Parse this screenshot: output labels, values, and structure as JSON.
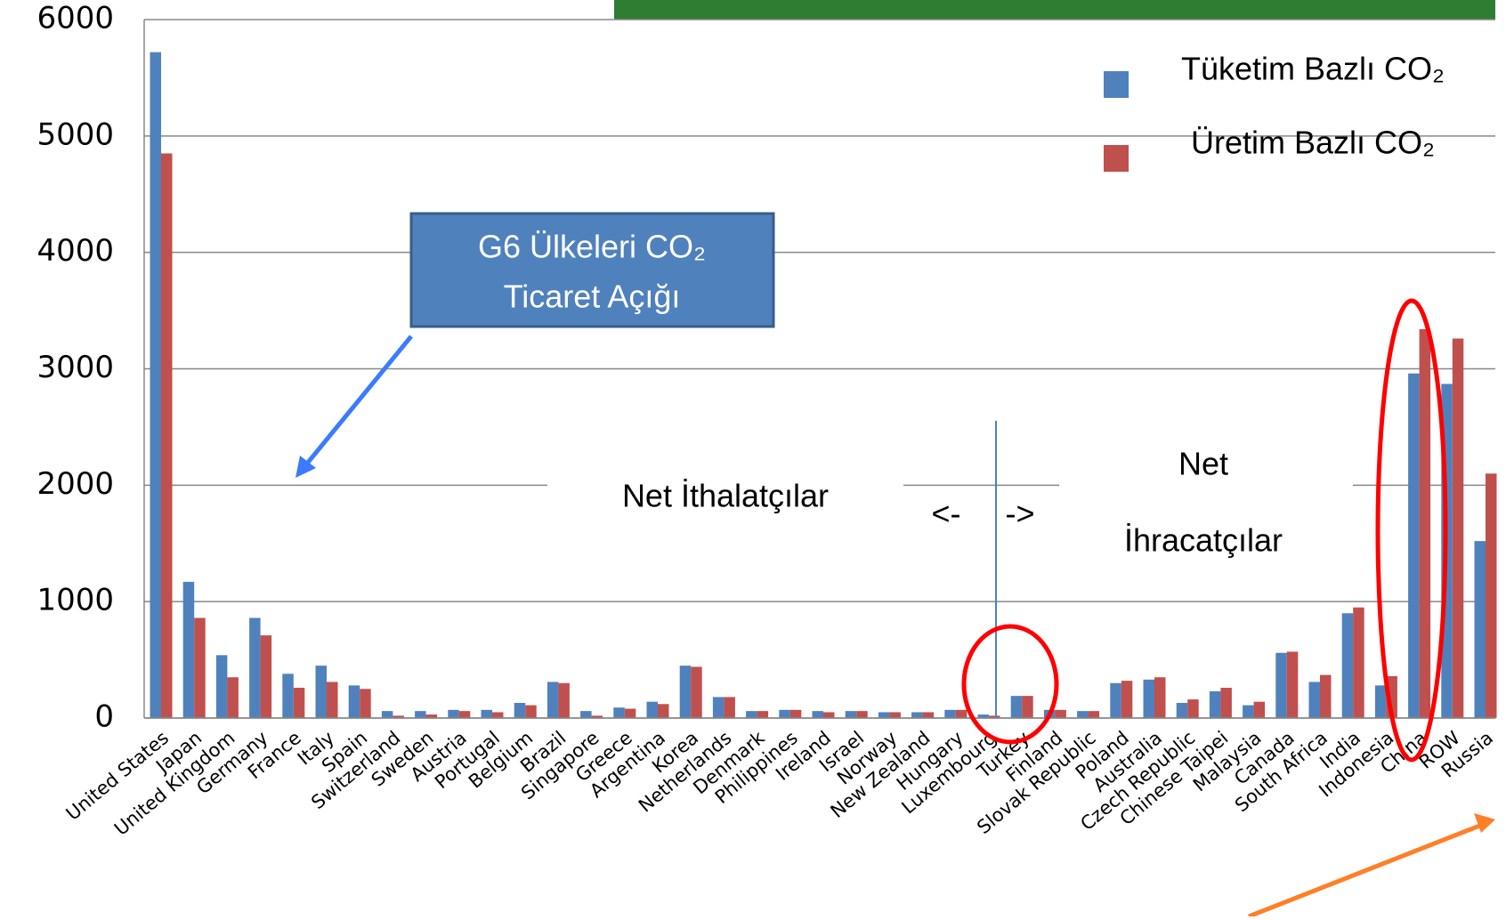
{
  "chart_data": {
    "type": "bar",
    "categories": [
      "United States",
      "Japan",
      "United Kingdom",
      "Germany",
      "France",
      "Italy",
      "Spain",
      "Switzerland",
      "Sweden",
      "Austria",
      "Portugal",
      "Belgium",
      "Brazil",
      "Singapore",
      "Greece",
      "Argentina",
      "Korea",
      "Netherlands",
      "Denmark",
      "Philippines",
      "Ireland",
      "Israel",
      "Norway",
      "New Zealand",
      "Hungary",
      "Luxembourg",
      "Turkey",
      "Finland",
      "Slovak Republic",
      "Poland",
      "Australia",
      "Czech Republic",
      "Chinese Taipei",
      "Malaysia",
      "Canada",
      "South Africa",
      "India",
      "Indonesia",
      "China",
      "ROW",
      "Russia"
    ],
    "series": [
      {
        "name": "Tüketim Bazlı CO₂",
        "color": "#4f81bd",
        "values": [
          5720,
          1170,
          540,
          860,
          380,
          450,
          280,
          60,
          60,
          70,
          70,
          130,
          310,
          60,
          90,
          140,
          450,
          180,
          60,
          70,
          60,
          60,
          50,
          50,
          70,
          30,
          190,
          70,
          60,
          300,
          330,
          130,
          230,
          110,
          560,
          310,
          900,
          280,
          2960,
          2870,
          1520
        ]
      },
      {
        "name": "Üretim Bazlı CO₂",
        "color": "#c0504d",
        "values": [
          4850,
          860,
          350,
          710,
          260,
          310,
          250,
          20,
          30,
          60,
          50,
          110,
          300,
          20,
          80,
          120,
          440,
          180,
          60,
          70,
          50,
          60,
          50,
          50,
          70,
          20,
          190,
          70,
          60,
          320,
          350,
          160,
          260,
          140,
          570,
          370,
          950,
          360,
          3340,
          3260,
          2100
        ]
      }
    ],
    "ylim": [
      0,
      6000
    ],
    "yticks": [
      0,
      1000,
      2000,
      3000,
      4000,
      5000,
      6000
    ],
    "grid": true,
    "annotations": {
      "box": [
        "G6 Ülkeleri CO₂",
        "Ticaret Açığı"
      ],
      "importers": "Net İthalatçılar",
      "left_arrow": "<-",
      "right_arrow": "->",
      "exporters": [
        "Net",
        "İhracatçılar"
      ]
    }
  }
}
